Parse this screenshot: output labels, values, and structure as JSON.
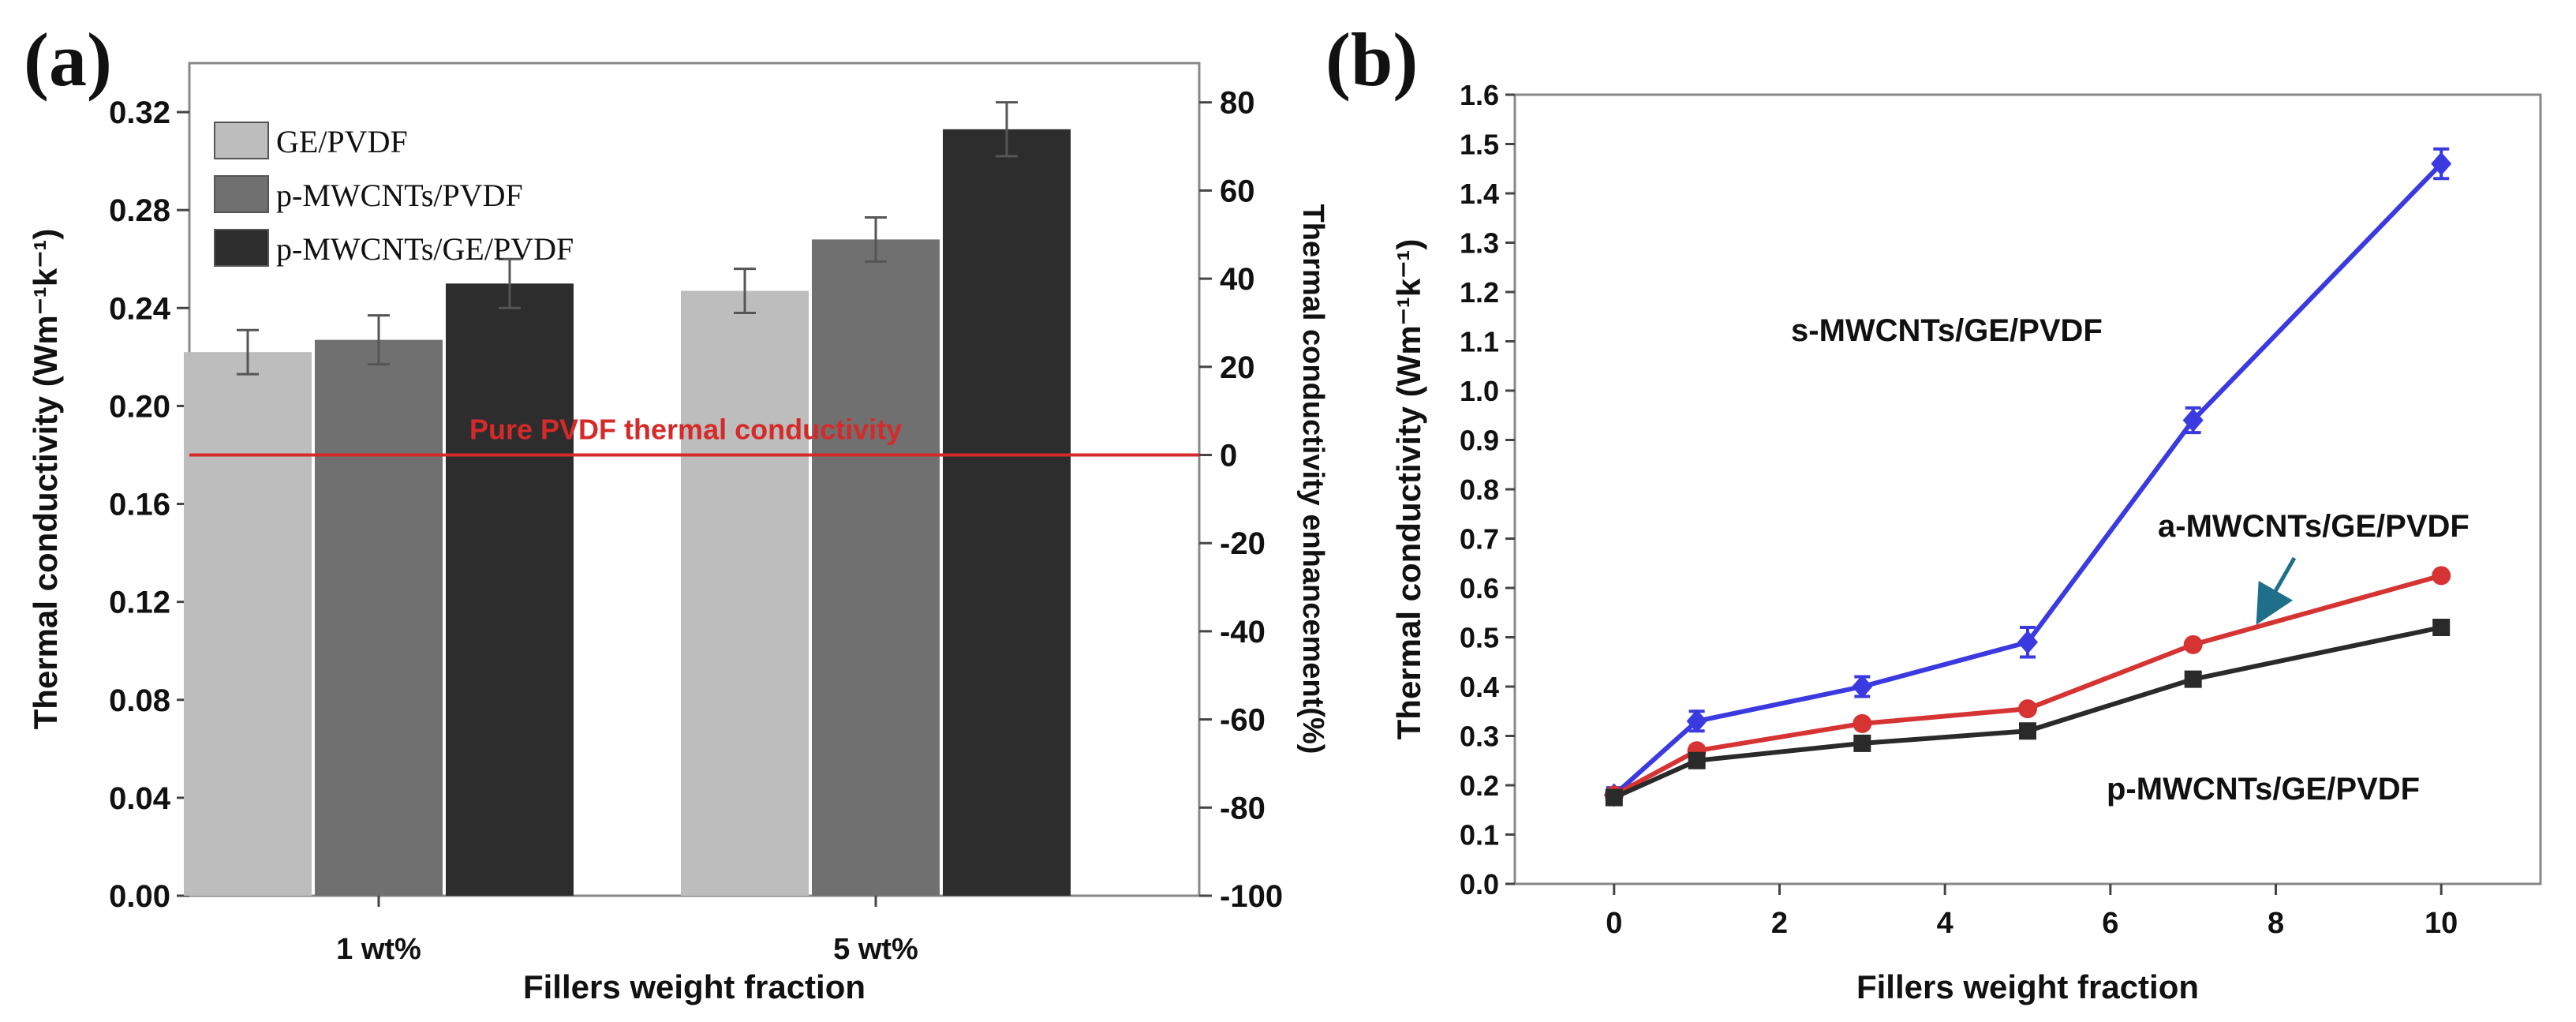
{
  "chart_data": [
    {
      "panel_label": "(a)",
      "type": "bar",
      "categories": [
        "1 wt%",
        "5 wt%"
      ],
      "series": [
        {
          "name": "GE/PVDF",
          "color": "#bdbdbd",
          "values": [
            0.222,
            0.247
          ],
          "errors": [
            0.009,
            0.009
          ]
        },
        {
          "name": "p-MWCNTs/PVDF",
          "color": "#707070",
          "values": [
            0.227,
            0.268
          ],
          "errors": [
            0.01,
            0.009
          ]
        },
        {
          "name": "p-MWCNTs/GE/PVDF",
          "color": "#2d2d2d",
          "values": [
            0.25,
            0.313
          ],
          "errors": [
            0.01,
            0.011
          ]
        }
      ],
      "xlabel": "Fillers weight fraction",
      "ylabel": "Thermal conductivity (Wm⁻¹k⁻¹)",
      "ylim": [
        0.0,
        0.34
      ],
      "yticks": [
        "0.00",
        "0.04",
        "0.08",
        "0.12",
        "0.16",
        "0.20",
        "0.24",
        "0.28",
        "0.32"
      ],
      "ytick_values": [
        0.0,
        0.04,
        0.08,
        0.12,
        0.16,
        0.2,
        0.24,
        0.28,
        0.32
      ],
      "y2label": "Thermal conductivity enhancement(%)",
      "y2ticks": [
        "-100",
        "-80",
        "-60",
        "-40",
        "-20",
        "0",
        "20",
        "40",
        "60",
        "80"
      ],
      "y2tick_values": [
        -100,
        -80,
        -60,
        -40,
        -20,
        0,
        20,
        40,
        60,
        80
      ],
      "y2lim": [
        -100,
        88.9
      ],
      "reference_line": {
        "value": 0.18,
        "label": "Pure PVDF thermal conductivity",
        "color": "#d42a2a"
      }
    },
    {
      "panel_label": "(b)",
      "type": "line",
      "x": [
        0,
        1,
        3,
        5,
        7,
        10
      ],
      "series": [
        {
          "name": "s-MWCNTs/GE/PVDF",
          "color": "#3a3ae0",
          "marker": "diamond",
          "values": [
            0.18,
            0.33,
            0.4,
            0.49,
            0.94,
            1.46
          ],
          "errors": [
            0.015,
            0.02,
            0.02,
            0.03,
            0.025,
            0.03
          ]
        },
        {
          "name": "a-MWCNTs/GE/PVDF",
          "color": "#d63333",
          "marker": "circle",
          "values": [
            0.18,
            0.27,
            0.325,
            0.355,
            0.485,
            0.625
          ]
        },
        {
          "name": "p-MWCNTs/GE/PVDF",
          "color": "#2a2a2a",
          "marker": "square",
          "values": [
            0.175,
            0.25,
            0.285,
            0.31,
            0.415,
            0.52
          ]
        }
      ],
      "xlabel": "Fillers weight fraction",
      "ylabel": "Thermal conductivity (Wm⁻¹k⁻¹)",
      "xlim": [
        -1.2,
        11.2
      ],
      "ylim": [
        0.0,
        1.6
      ],
      "xticks": [
        "0",
        "2",
        "4",
        "6",
        "8",
        "10"
      ],
      "xtick_values": [
        0,
        2,
        4,
        6,
        8,
        10
      ],
      "yticks": [
        "0.0",
        "0.1",
        "0.2",
        "0.3",
        "0.4",
        "0.5",
        "0.6",
        "0.7",
        "0.8",
        "0.9",
        "1.0",
        "1.1",
        "1.2",
        "1.3",
        "1.4",
        "1.5",
        "1.6"
      ],
      "ytick_values": [
        0.0,
        0.1,
        0.2,
        0.3,
        0.4,
        0.5,
        0.6,
        0.7,
        0.8,
        0.9,
        1.0,
        1.1,
        1.2,
        1.3,
        1.4,
        1.5,
        1.6
      ],
      "annotations": [
        {
          "text": "s-MWCNTs/GE/PVDF",
          "series": 0
        },
        {
          "text": "a-MWCNTs/GE/PVDF",
          "series": 1,
          "arrow": true
        },
        {
          "text": "p-MWCNTs/GE/PVDF",
          "series": 2
        }
      ]
    }
  ]
}
